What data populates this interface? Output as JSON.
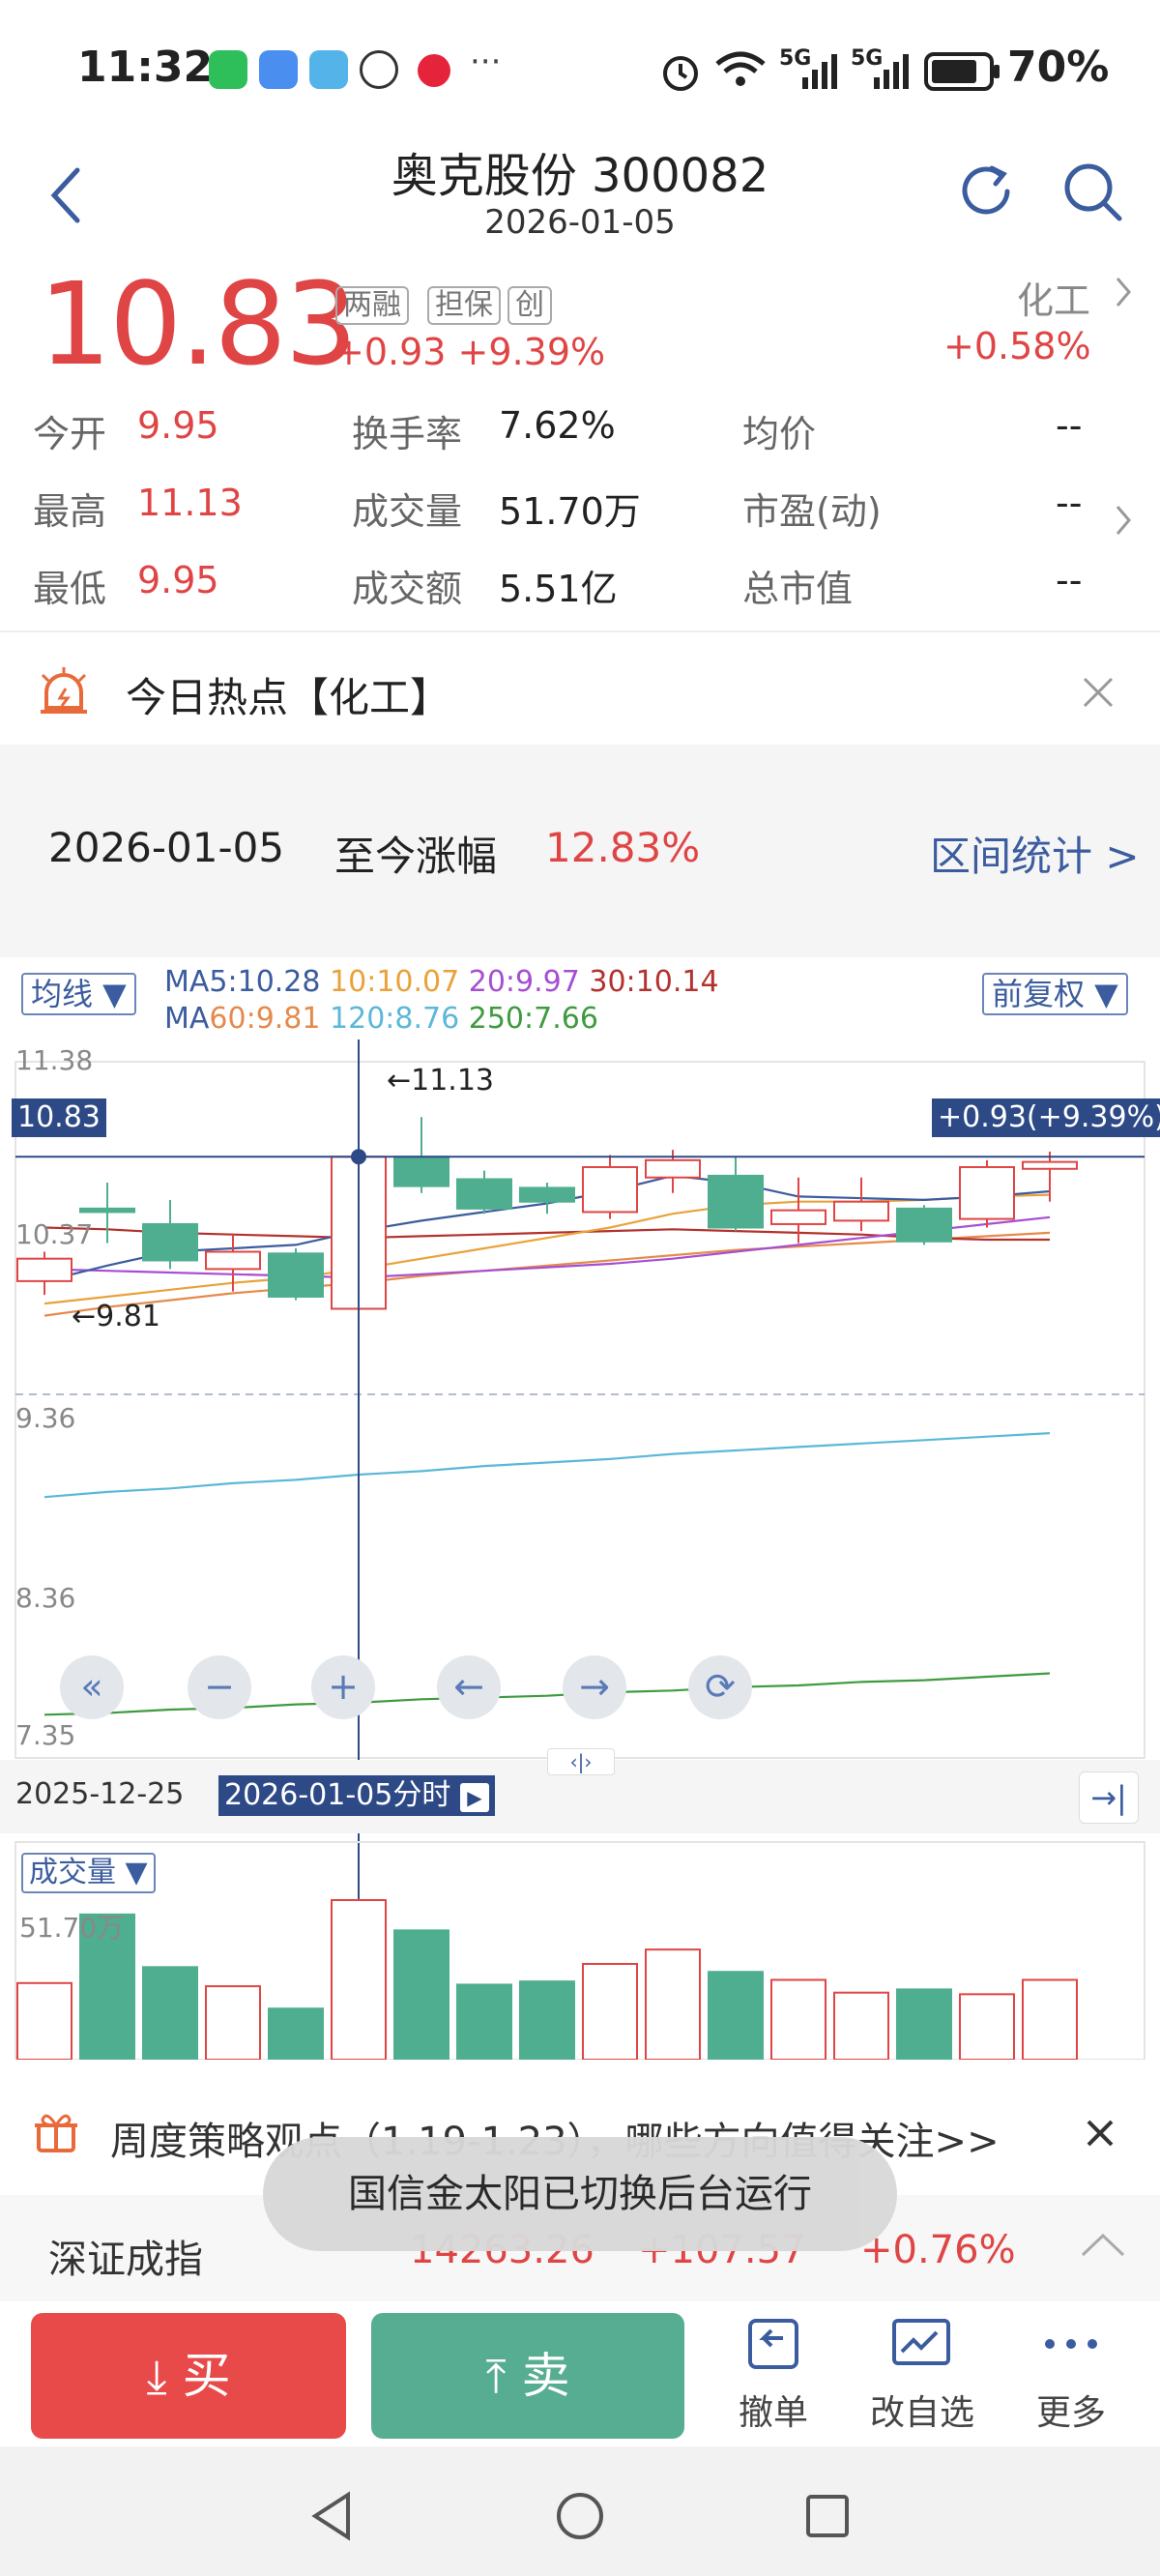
{
  "status_bar": {
    "time": "11:32",
    "battery": "70%",
    "signal1": "5G",
    "signal2": "5G",
    "more": "···"
  },
  "header": {
    "title": "奥克股份 300082",
    "date": "2026-01-05"
  },
  "quote": {
    "price": "10.83",
    "change": "+0.93",
    "change_pct": "+9.39%",
    "tags": [
      "两融",
      "担保",
      "创"
    ],
    "sector": "化工",
    "sector_change": "+0.58%",
    "stats": {
      "open_label": "今开",
      "open": "9.95",
      "high_label": "最高",
      "high": "11.13",
      "low_label": "最低",
      "low": "9.95",
      "turnover_label": "换手率",
      "turnover": "7.62%",
      "volume_label": "成交量",
      "volume": "51.70万",
      "amount_label": "成交额",
      "amount": "5.51亿",
      "avg_label": "均价",
      "avg": "--",
      "pe_label": "市盈(动)",
      "pe": "--",
      "mcap_label": "总市值",
      "mcap": "--"
    }
  },
  "hot": {
    "text": "今日热点【化工】"
  },
  "range": {
    "date": "2026-01-05",
    "label": "至今涨幅",
    "value": "12.83%",
    "link": "区间统计 >"
  },
  "chart": {
    "ma_selector": "均线 ▼",
    "adjust_selector": "前复权 ▼",
    "ma5": "MA5:10.28",
    "ma10": "10:10.07",
    "ma20": "20:9.97",
    "ma30": "30:10.14",
    "ma60_prefix": "MA",
    "ma60": "60:9.81",
    "ma120": "120:8.76",
    "ma250": "250:7.66",
    "y_labels": [
      "11.38",
      "10.37",
      "9.36",
      "8.36",
      "7.35"
    ],
    "cursor_price": "10.83",
    "cursor_change": "+0.93(+9.39%)",
    "high_mark": "←11.13",
    "low_mark": "←9.81",
    "start_date": "2025-12-25",
    "cursor_date": "2026-01-05分时",
    "volume_selector": "成交量 ▼",
    "volume_max": "51.70万",
    "colors": {
      "up": "#e04545",
      "down": "#4fae8f",
      "ma5": "#3b5c9e",
      "ma10": "#e9a23b",
      "ma20": "#a64fd1",
      "ma30": "#b3322f",
      "ma60": "#e58a4c",
      "ma120": "#5bb8d8",
      "ma250": "#3e9b3e"
    }
  },
  "chart_data": {
    "type": "candlestick",
    "y_range": [
      7.35,
      11.38
    ],
    "candles": [
      {
        "o": 10.11,
        "c": 10.24,
        "h": 10.28,
        "l": 10.03
      },
      {
        "o": 10.53,
        "c": 10.51,
        "h": 10.68,
        "l": 10.33
      },
      {
        "o": 10.44,
        "c": 10.23,
        "h": 10.58,
        "l": 10.18
      },
      {
        "o": 10.18,
        "c": 10.28,
        "h": 10.38,
        "l": 10.05
      },
      {
        "o": 10.27,
        "c": 10.02,
        "h": 10.3,
        "l": 10.0
      },
      {
        "o": 9.95,
        "c": 10.83,
        "h": 11.13,
        "l": 9.95
      },
      {
        "o": 10.83,
        "c": 10.66,
        "h": 11.06,
        "l": 10.62
      },
      {
        "o": 10.7,
        "c": 10.53,
        "h": 10.75,
        "l": 10.5
      },
      {
        "o": 10.65,
        "c": 10.57,
        "h": 10.68,
        "l": 10.5
      },
      {
        "o": 10.51,
        "c": 10.77,
        "h": 10.84,
        "l": 10.47
      },
      {
        "o": 10.71,
        "c": 10.81,
        "h": 10.87,
        "l": 10.62
      },
      {
        "o": 10.72,
        "c": 10.42,
        "h": 10.83,
        "l": 10.4
      },
      {
        "o": 10.44,
        "c": 10.52,
        "h": 10.71,
        "l": 10.33
      },
      {
        "o": 10.46,
        "c": 10.57,
        "h": 10.71,
        "l": 10.4
      },
      {
        "o": 10.53,
        "c": 10.34,
        "h": 10.55,
        "l": 10.32
      },
      {
        "o": 10.47,
        "c": 10.77,
        "h": 10.81,
        "l": 10.42
      },
      {
        "o": 10.76,
        "c": 10.8,
        "h": 10.86,
        "l": 10.57
      }
    ],
    "volume": [
      0.48,
      0.91,
      0.58,
      0.46,
      0.32,
      1.0,
      0.81,
      0.47,
      0.49,
      0.6,
      0.69,
      0.55,
      0.5,
      0.42,
      0.44,
      0.41,
      0.5
    ],
    "ma_lines": {
      "ma5": [
        10.11,
        10.2,
        10.28,
        10.3,
        10.32,
        10.4,
        10.46,
        10.51,
        10.56,
        10.63,
        10.72,
        10.68,
        10.6,
        10.59,
        10.58,
        10.6,
        10.63
      ],
      "ma10": [
        9.98,
        10.02,
        10.06,
        10.1,
        10.13,
        10.18,
        10.24,
        10.3,
        10.36,
        10.42,
        10.5,
        10.55,
        10.57,
        10.57,
        10.58,
        10.6,
        10.61
      ],
      "ma20": [
        10.18,
        10.17,
        10.16,
        10.15,
        10.14,
        10.13,
        10.15,
        10.17,
        10.19,
        10.21,
        10.24,
        10.28,
        10.32,
        10.36,
        10.4,
        10.44,
        10.48
      ],
      "ma30": [
        10.42,
        10.41,
        10.39,
        10.38,
        10.37,
        10.36,
        10.37,
        10.38,
        10.39,
        10.4,
        10.41,
        10.4,
        10.39,
        10.38,
        10.36,
        10.35,
        10.35
      ],
      "ma60": [
        9.91,
        9.96,
        10.0,
        10.04,
        10.07,
        10.1,
        10.14,
        10.17,
        10.2,
        10.23,
        10.26,
        10.29,
        10.31,
        10.33,
        10.35,
        10.37,
        10.39
      ],
      "ma120": [
        8.86,
        8.89,
        8.91,
        8.94,
        8.96,
        8.99,
        9.01,
        9.04,
        9.06,
        9.08,
        9.11,
        9.13,
        9.15,
        9.17,
        9.19,
        9.21,
        9.23
      ],
      "ma250": [
        7.6,
        7.61,
        7.63,
        7.64,
        7.66,
        7.67,
        7.69,
        7.7,
        7.71,
        7.73,
        7.74,
        7.76,
        7.77,
        7.79,
        7.8,
        7.82,
        7.84
      ]
    }
  },
  "notice": {
    "text": "周度策略观点（1.19-1.23），哪些方向值得关注>>"
  },
  "toast": {
    "text": "国信金太阳已切换后台运行"
  },
  "index_bar": {
    "name": "深证成指",
    "value": "14263.26",
    "change": "+107.57",
    "change_pct": "+0.76%"
  },
  "bottom": {
    "buy": "买",
    "sell": "卖",
    "cancel": "撤单",
    "edit_watch": "改自选",
    "more": "更多"
  }
}
